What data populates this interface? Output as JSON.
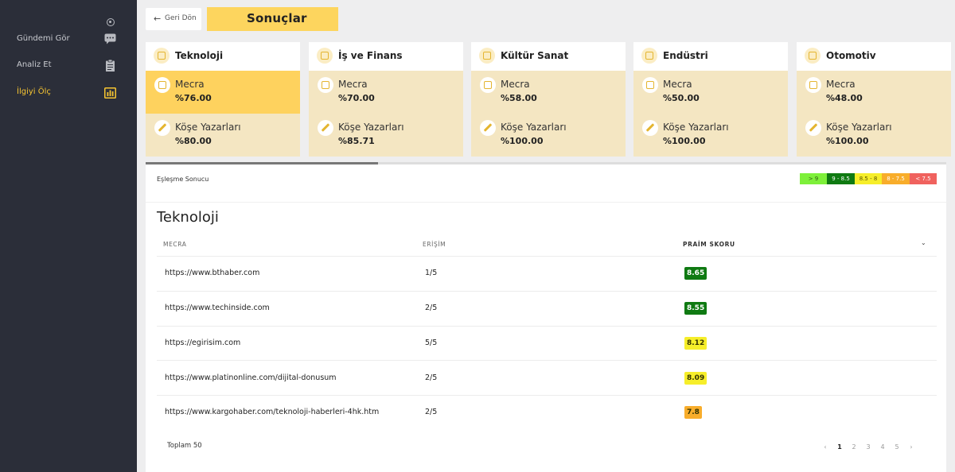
{
  "sidebar": {
    "items": [
      {
        "label": "Gündemi Gör",
        "icon": "chat-icon",
        "active": false
      },
      {
        "label": "Analiz Et",
        "icon": "clipboard-icon",
        "active": false
      },
      {
        "label": "İlgiyi Ölç",
        "icon": "bar-chart-icon",
        "active": true
      }
    ]
  },
  "header": {
    "back_label": "Geri Dön",
    "title": "Sonuçlar"
  },
  "cards": [
    {
      "title": "Teknoloji",
      "icon": "monitor-icon",
      "media_label": "Mecra",
      "media_value": "%76.00",
      "writers_label": "Köşe Yazarları",
      "writers_value": "%80.00",
      "selected": true
    },
    {
      "title": "İş ve Finans",
      "icon": "coins-icon",
      "media_label": "Mecra",
      "media_value": "%70.00",
      "writers_label": "Köşe Yazarları",
      "writers_value": "%85.71",
      "selected": false
    },
    {
      "title": "Kültür Sanat",
      "icon": "palette-icon",
      "media_label": "Mecra",
      "media_value": "%58.00",
      "writers_label": "Köşe Yazarları",
      "writers_value": "%100.00",
      "selected": false
    },
    {
      "title": "Endüstri",
      "icon": "factory-icon",
      "media_label": "Mecra",
      "media_value": "%50.00",
      "writers_label": "Köşe Yazarları",
      "writers_value": "%100.00",
      "selected": false
    },
    {
      "title": "Otomotiv",
      "icon": "car-icon",
      "media_label": "Mecra",
      "media_value": "%48.00",
      "writers_label": "Köşe Yazarları",
      "writers_value": "%100.00",
      "selected": false
    }
  ],
  "scroll_progress": 0.29,
  "results": {
    "subtitle": "Eşleşme Sonucu",
    "legend": [
      {
        "label": "> 9",
        "bg": "#7ef03a",
        "fg": "#2d5a10"
      },
      {
        "label": "9 - 8.5",
        "bg": "#0f7a12",
        "fg": "#ffffff"
      },
      {
        "label": "8.5 - 8",
        "bg": "#f6ee2a",
        "fg": "#5a5200"
      },
      {
        "label": "8 - 7.5",
        "bg": "#f8ad2b",
        "fg": "#ffffff"
      },
      {
        "label": "< 7.5",
        "bg": "#f0625e",
        "fg": "#ffffff"
      }
    ],
    "title": "Teknoloji",
    "columns": {
      "media": "MECRA",
      "reach": "ERİŞİM",
      "score": "PRAİM SKORU"
    },
    "rows": [
      {
        "url": "https://www.bthaber.com",
        "reach": "1/5",
        "score": "8.65",
        "score_bg": "#0f7a12",
        "score_fg": "#ffffff"
      },
      {
        "url": "https://www.techinside.com",
        "reach": "2/5",
        "score": "8.55",
        "score_bg": "#0f7a12",
        "score_fg": "#ffffff"
      },
      {
        "url": "https://egirisim.com",
        "reach": "5/5",
        "score": "8.12",
        "score_bg": "#f6ee2a",
        "score_fg": "#333300"
      },
      {
        "url": "https://www.platinonline.com/dijital-donusum",
        "reach": "2/5",
        "score": "8.09",
        "score_bg": "#f6ee2a",
        "score_fg": "#333300"
      },
      {
        "url": "https://www.kargohaber.com/teknoloji-haberleri-4hk.htm",
        "reach": "2/5",
        "score": "7.8",
        "score_bg": "#f8ad2b",
        "score_fg": "#333300"
      }
    ],
    "total": "Toplam 50",
    "pagination": {
      "prev": "‹",
      "pages": [
        "1",
        "2",
        "3",
        "4",
        "5"
      ],
      "current": "1",
      "next": "›"
    }
  }
}
